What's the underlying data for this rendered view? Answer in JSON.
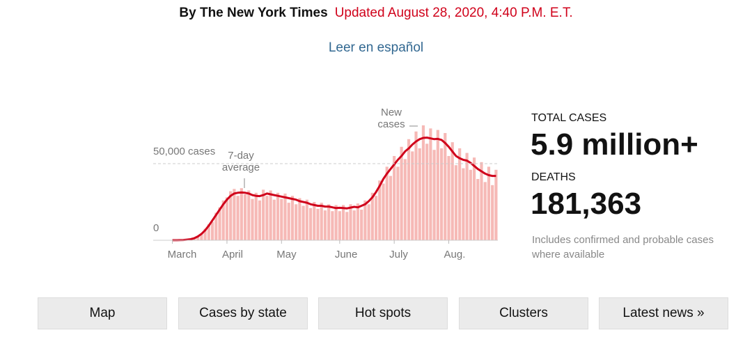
{
  "header": {
    "byline": "By The New York Times",
    "updated": "Updated August 28, 2020, 4:40 P.M. E.T.",
    "link": "Leer en español"
  },
  "stats": {
    "cases_label": "TOTAL CASES",
    "cases_value": "5.9 million+",
    "deaths_label": "DEATHS",
    "deaths_value": "181,363",
    "note": "Includes confirmed and probable cases where available"
  },
  "buttons": [
    "Map",
    "Cases by state",
    "Hot spots",
    "Clusters",
    "Latest news »"
  ],
  "chart_data": {
    "type": "bar",
    "categories": [
      "March",
      null,
      null,
      null,
      null,
      null,
      null,
      null,
      null,
      null,
      null,
      null,
      null,
      null,
      null,
      "April",
      null,
      null,
      null,
      null,
      null,
      null,
      null,
      null,
      null,
      null,
      null,
      null,
      null,
      null,
      "May",
      null,
      null,
      null,
      null,
      null,
      null,
      null,
      null,
      null,
      null,
      null,
      null,
      null,
      null,
      null,
      "June",
      null,
      null,
      null,
      null,
      null,
      null,
      null,
      null,
      null,
      null,
      null,
      null,
      null,
      null,
      "July",
      null,
      null,
      null,
      null,
      null,
      null,
      null,
      null,
      null,
      null,
      null,
      null,
      null,
      null,
      "Aug.",
      null,
      null,
      null,
      null,
      null,
      null,
      null,
      null,
      null,
      null,
      null,
      null,
      null
    ],
    "series": [
      {
        "name": "New cases",
        "type": "bar",
        "color": "#f6b9b6",
        "values": [
          40,
          60,
          90,
          250,
          450,
          600,
          1500,
          2800,
          4500,
          7500,
          10500,
          12000,
          18000,
          21500,
          26000,
          28000,
          32000,
          33500,
          29000,
          34000,
          30000,
          32500,
          27000,
          31000,
          26000,
          33000,
          29000,
          32500,
          26500,
          31000,
          27000,
          30500,
          24500,
          29000,
          23500,
          27500,
          22500,
          26500,
          21000,
          25000,
          20500,
          24500,
          19500,
          23500,
          19000,
          23000,
          19000,
          23000,
          18500,
          23500,
          19500,
          24000,
          20000,
          26000,
          23500,
          31000,
          29000,
          39000,
          37000,
          48000,
          42000,
          55000,
          48000,
          61000,
          53000,
          66000,
          58000,
          71000,
          60000,
          75000,
          63000,
          73000,
          59000,
          72000,
          60000,
          70000,
          55000,
          64000,
          49000,
          60000,
          47000,
          57000,
          46000,
          54000,
          40000,
          51000,
          38000,
          48000,
          36000,
          46000
        ]
      },
      {
        "name": "7-day average",
        "type": "line",
        "color": "#d0021b",
        "values": [
          30,
          50,
          100,
          200,
          400,
          700,
          1300,
          2500,
          4200,
          6500,
          9500,
          13000,
          16500,
          20000,
          23500,
          26500,
          29000,
          30500,
          31000,
          31200,
          31000,
          30500,
          29500,
          29000,
          28800,
          29500,
          30500,
          30000,
          29500,
          29000,
          28500,
          28000,
          27500,
          27000,
          26500,
          25500,
          25000,
          24500,
          23500,
          23000,
          22500,
          22500,
          22000,
          22000,
          21500,
          21000,
          21200,
          21000,
          20800,
          21300,
          21800,
          21500,
          22500,
          23500,
          25500,
          28000,
          31500,
          35500,
          40000,
          43500,
          46500,
          49500,
          52500,
          55000,
          58000,
          60000,
          62500,
          64500,
          66000,
          66800,
          67000,
          66500,
          66000,
          66200,
          65500,
          63500,
          61000,
          58000,
          55000,
          53500,
          52500,
          52000,
          50500,
          48500,
          46500,
          45000,
          43500,
          42500,
          42000,
          42000
        ]
      }
    ],
    "ylim": [
      0,
      80000
    ],
    "yticks": [
      0,
      {
        "value": 50000,
        "label": "50,000 cases"
      }
    ],
    "grid": true
  }
}
